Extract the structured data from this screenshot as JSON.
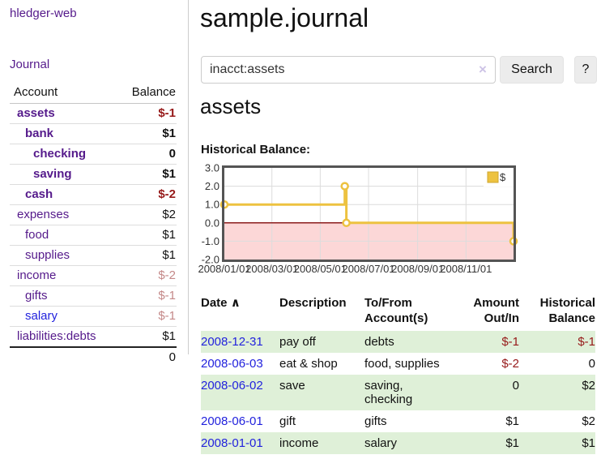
{
  "app": {
    "brand": "hledger-web"
  },
  "colors": {
    "link_purple": "#551a8b",
    "link_blue": "#2222dd",
    "negative_strong": "#961919",
    "negative_faded": "#c48888",
    "row_green": "#dff0d8",
    "series_gold": "#edc240",
    "negative_region_fill": "#fcd7d7",
    "zero_line_red": "#8b1c1c",
    "chart_border": "#545454",
    "gridline": "#dcdcdc"
  },
  "sidebar": {
    "journal_label": "Journal",
    "accounts_table": {
      "headers": {
        "account": "Account",
        "balance": "Balance"
      },
      "rows": [
        {
          "name": "assets",
          "indent": 1,
          "bold": true,
          "name_color": "purple",
          "balance": "$-1",
          "balance_style": "neg"
        },
        {
          "name": "bank",
          "indent": 2,
          "bold": true,
          "name_color": "purple",
          "balance": "$1",
          "balance_style": ""
        },
        {
          "name": "checking",
          "indent": 3,
          "bold": true,
          "name_color": "purple",
          "balance": "0",
          "balance_style": ""
        },
        {
          "name": "saving",
          "indent": 3,
          "bold": true,
          "name_color": "purple",
          "balance": "$1",
          "balance_style": ""
        },
        {
          "name": "cash",
          "indent": 2,
          "bold": true,
          "name_color": "purple",
          "balance": "$-2",
          "balance_style": "neg"
        },
        {
          "name": "expenses",
          "indent": 1,
          "bold": false,
          "name_color": "purple",
          "balance": "$2",
          "balance_style": ""
        },
        {
          "name": "food",
          "indent": 2,
          "bold": false,
          "name_color": "purple",
          "balance": "$1",
          "balance_style": ""
        },
        {
          "name": "supplies",
          "indent": 2,
          "bold": false,
          "name_color": "purple",
          "balance": "$1",
          "balance_style": ""
        },
        {
          "name": "income",
          "indent": 1,
          "bold": false,
          "name_color": "purple",
          "balance": "$-2",
          "balance_style": "negfade"
        },
        {
          "name": "gifts",
          "indent": 2,
          "bold": false,
          "name_color": "purple",
          "balance": "$-1",
          "balance_style": "negfade"
        },
        {
          "name": "salary",
          "indent": 2,
          "bold": false,
          "name_color": "blue",
          "balance": "$-1",
          "balance_style": "negfade"
        },
        {
          "name": "liabilities:debts",
          "indent": 1,
          "bold": false,
          "name_color": "purple",
          "balance": "$1",
          "balance_style": ""
        }
      ],
      "total": "0"
    }
  },
  "main": {
    "title": "sample.journal",
    "search": {
      "value": "inacct:assets",
      "clear_icon": "×",
      "button_label": "Search",
      "help_label": "?"
    },
    "account_heading": "assets",
    "register": {
      "headers": [
        "Date",
        "Description",
        "To/From Account(s)",
        "Amount Out/In",
        "Historical Balance"
      ],
      "sort_icon": "∧",
      "rows": [
        {
          "date": "2008-12-31",
          "description": "pay off",
          "accounts": "debts",
          "amount": "$-1",
          "amount_style": "neg",
          "balance": "$-1",
          "balance_style": "neg",
          "shaded": true
        },
        {
          "date": "2008-06-03",
          "description": "eat & shop",
          "accounts": "food, supplies",
          "amount": "$-2",
          "amount_style": "neg",
          "balance": "0",
          "balance_style": "",
          "shaded": false
        },
        {
          "date": "2008-06-02",
          "description": "save",
          "accounts": "saving, checking",
          "amount": "0",
          "amount_style": "",
          "balance": "$2",
          "balance_style": "",
          "shaded": true
        },
        {
          "date": "2008-06-01",
          "description": "gift",
          "accounts": "gifts",
          "amount": "$1",
          "amount_style": "",
          "balance": "$2",
          "balance_style": "",
          "shaded": false
        },
        {
          "date": "2008-01-01",
          "description": "income",
          "accounts": "salary",
          "amount": "$1",
          "amount_style": "",
          "balance": "$1",
          "balance_style": "",
          "shaded": true
        }
      ]
    }
  },
  "chart_data": {
    "type": "line",
    "title": "Historical Balance:",
    "line_style": "step-after",
    "legend": [
      "$"
    ],
    "legend_position": "top-right",
    "series": [
      {
        "name": "$",
        "points": [
          [
            "2008-01-01",
            1
          ],
          [
            "2008-06-01",
            2
          ],
          [
            "2008-06-03",
            0
          ],
          [
            "2008-12-31",
            -1
          ]
        ]
      }
    ],
    "x_ticks": [
      "2008/01/01",
      "2008/03/01",
      "2008/05/01",
      "2008/07/01",
      "2008/09/01",
      "2008/11/01"
    ],
    "y_ticks": [
      3.0,
      2.0,
      1.0,
      0.0,
      -1.0,
      -2.0
    ],
    "xlim": [
      "2008-01-01",
      "2008-12-31"
    ],
    "ylim": [
      -2,
      3
    ],
    "grid": true,
    "negative_region_shaded": true
  }
}
